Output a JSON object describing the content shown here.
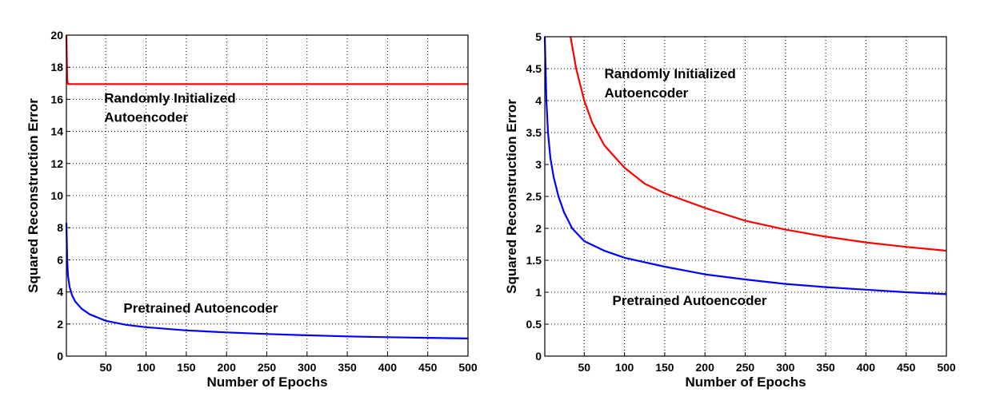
{
  "chart_data": [
    {
      "type": "line",
      "title": "",
      "xlabel": "Number of Epochs",
      "ylabel": "Squared Reconstruction Error",
      "xlim": [
        1,
        500
      ],
      "ylim": [
        0,
        20
      ],
      "xticks": [
        50,
        100,
        150,
        200,
        250,
        300,
        350,
        400,
        450,
        500
      ],
      "yticks": [
        0,
        2,
        4,
        6,
        8,
        10,
        12,
        14,
        16,
        18,
        20
      ],
      "grid": true,
      "annotations": [
        {
          "text": "Randomly Initialized",
          "x": 48,
          "y": 15.8
        },
        {
          "text": "Autoencoder",
          "x": 48,
          "y": 14.6
        },
        {
          "text": "Pretrained Autoencoder",
          "x": 72,
          "y": 2.7
        }
      ],
      "series": [
        {
          "color": "#ff0000",
          "x": [
            1,
            2,
            3,
            5,
            10,
            50,
            100,
            200,
            300,
            400,
            500
          ],
          "y": [
            20,
            17.2,
            16.95,
            16.95,
            16.95,
            16.95,
            16.95,
            16.95,
            16.95,
            16.95,
            16.95
          ]
        },
        {
          "color": "#0000ff",
          "x": [
            1,
            2,
            3,
            5,
            8,
            12,
            20,
            30,
            50,
            75,
            100,
            150,
            200,
            250,
            300,
            350,
            400,
            450,
            500
          ],
          "y": [
            8.3,
            6.0,
            5.0,
            4.3,
            3.8,
            3.4,
            2.95,
            2.6,
            2.2,
            1.95,
            1.8,
            1.6,
            1.48,
            1.38,
            1.3,
            1.23,
            1.18,
            1.14,
            1.1
          ]
        }
      ]
    },
    {
      "type": "line",
      "title": "",
      "xlabel": "Number of Epochs",
      "ylabel": "Squared Reconstruction Error",
      "xlim": [
        1,
        500
      ],
      "ylim": [
        0,
        5
      ],
      "xticks": [
        50,
        100,
        150,
        200,
        250,
        300,
        350,
        400,
        450,
        500
      ],
      "yticks": [
        0,
        0.5,
        1,
        1.5,
        2,
        2.5,
        3,
        3.5,
        4,
        4.5,
        5
      ],
      "ytick_labels": [
        "0",
        "0.5",
        "1",
        "1.5",
        "2",
        "2.5",
        "3",
        "3.5",
        "4",
        "4.5",
        "5"
      ],
      "grid": true,
      "annotations": [
        {
          "text": "Randomly Initialized",
          "x": 75,
          "y": 4.35
        },
        {
          "text": "Autoencoder",
          "x": 75,
          "y": 4.05
        },
        {
          "text": "Pretrained Autoencoder",
          "x": 85,
          "y": 0.8
        }
      ],
      "series": [
        {
          "color": "#ff0000",
          "x": [
            33,
            40,
            50,
            60,
            75,
            100,
            125,
            150,
            200,
            250,
            300,
            350,
            400,
            450,
            500
          ],
          "y": [
            5.0,
            4.5,
            4.0,
            3.65,
            3.3,
            2.95,
            2.7,
            2.55,
            2.32,
            2.12,
            1.98,
            1.87,
            1.78,
            1.71,
            1.65
          ]
        },
        {
          "color": "#0000ff",
          "x": [
            1,
            3,
            5,
            8,
            12,
            18,
            25,
            35,
            50,
            75,
            100,
            150,
            200,
            250,
            300,
            350,
            400,
            450,
            500
          ],
          "y": [
            5.0,
            4.0,
            3.5,
            3.1,
            2.8,
            2.5,
            2.25,
            2.0,
            1.8,
            1.65,
            1.54,
            1.4,
            1.28,
            1.2,
            1.13,
            1.08,
            1.04,
            1.0,
            0.97
          ]
        }
      ]
    }
  ]
}
